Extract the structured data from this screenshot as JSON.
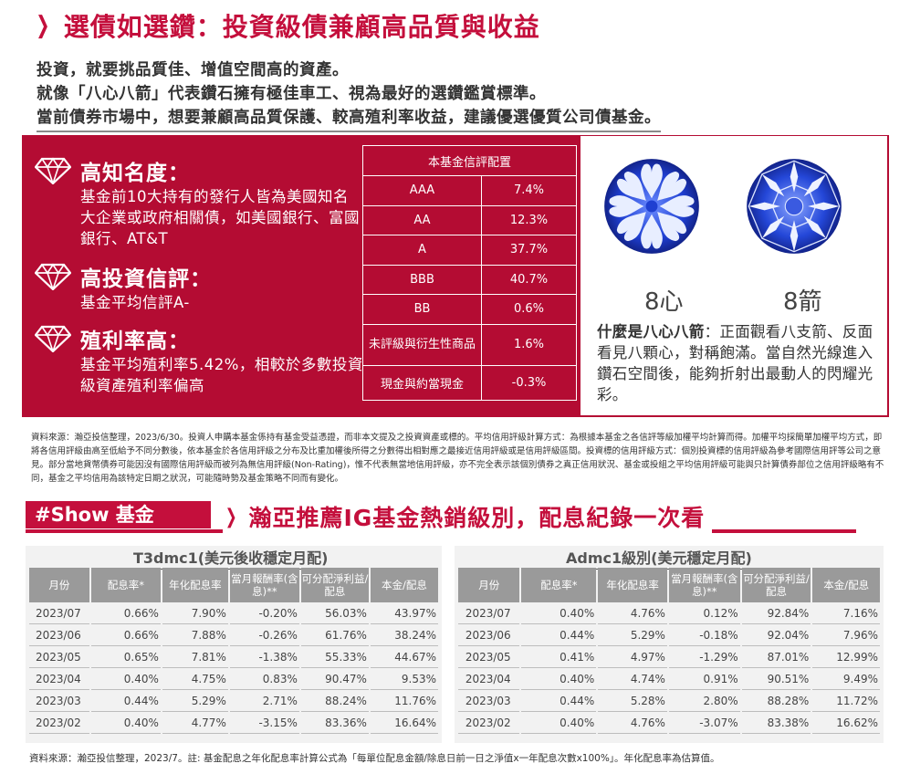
{
  "header": {
    "title": "選債如選鑽：投資級債兼顧高品質與收益"
  },
  "intro": {
    "line1": "投資，就要挑品質佳、增值空間高的資產。",
    "line2": "就像「八心八箭」代表鑽石擁有極佳車工、視為最好的選鑽鑑賞標準。",
    "line3": "當前債券市場中，想要兼顧高品質保護、較高殖利率收益，建議優選優質公司債基金。"
  },
  "features": [
    {
      "title": "高知名度：",
      "body": "基金前10大持有的發行人皆為美國知名大企業或政府相關債，如美國銀行、富國銀行、AT&T"
    },
    {
      "title": "高投資信評：",
      "body": "基金平均信評A-"
    },
    {
      "title": "殖利率高：",
      "body": "基金平均殖利率5.42%，相較於多數投資級資產殖利率偏高"
    }
  ],
  "rating_table": {
    "header": "本基金信評配置",
    "rows": [
      {
        "label": "AAA",
        "value": "7.4%"
      },
      {
        "label": "AA",
        "value": "12.3%"
      },
      {
        "label": "A",
        "value": "37.7%"
      },
      {
        "label": "BBB",
        "value": "40.7%"
      },
      {
        "label": "BB",
        "value": "0.6%"
      },
      {
        "label": "未評級與衍生性商品",
        "value": "1.6%"
      },
      {
        "label": "現金與約當現金",
        "value": "-0.3%"
      }
    ]
  },
  "diamonds": {
    "left_label": "8心",
    "right_label": "8箭",
    "question": "什麼是八心八箭",
    "description": "：正面觀看八支箭、反面看見八顆心，對稱飽滿。當自然光線進入鑽石空間後，能夠折射出最動人的閃耀光彩。"
  },
  "source1": "資料來源：瀚亞投信整理，2023/6/30。投資人申購本基金係持有基金受益憑證，而非本文提及之投資資產或標的。平均信用評級計算方式：為根據本基金之各信評等級加權平均計算而得。加權平均採簡單加權平均方式，即將各信用評級由高至低給予不同分數後，依本基金於各信用評級之分布及比重加權後所得之分數得出相對應之最接近信用評級或是信用評級區間。投資標的信用評級方式：個別投資標的信用評級為參考國際信用評等公司之意見。部分當地貨幣債券可能因沒有國際信用評級而被列為無信用評級(Non-Rating)，惟不代表無當地信用評級，亦不完全表示該個別債券之真正信用狀況、基金或投組之平均信用評級可能與只計算債券部位之信用評級略有不同，基金之平均信用為該特定日期之狀況，可能隨時勢及基金策略不同而有變化。",
  "show": {
    "tag": "#Show 基金",
    "subtitle": "瀚亞推薦IG基金熱銷級別，配息紀錄一次看"
  },
  "fund_headers": [
    "月份",
    "配息率*",
    "年化配息率",
    "當月報酬率(含息)**",
    "可分配淨利益/配息",
    "本金/配息"
  ],
  "funds": [
    {
      "title": "T3dmc1(美元後收穩定月配)",
      "rows": [
        [
          "2023/07",
          "0.66%",
          "7.90%",
          "-0.20%",
          "56.03%",
          "43.97%"
        ],
        [
          "2023/06",
          "0.66%",
          "7.88%",
          "-0.26%",
          "61.76%",
          "38.24%"
        ],
        [
          "2023/05",
          "0.65%",
          "7.81%",
          "-1.38%",
          "55.33%",
          "44.67%"
        ],
        [
          "2023/04",
          "0.40%",
          "4.75%",
          "0.83%",
          "90.47%",
          "9.53%"
        ],
        [
          "2023/03",
          "0.44%",
          "5.29%",
          "2.71%",
          "88.24%",
          "11.76%"
        ],
        [
          "2023/02",
          "0.40%",
          "4.77%",
          "-3.15%",
          "83.36%",
          "16.64%"
        ]
      ]
    },
    {
      "title": "Admc1級別(美元穩定月配)",
      "rows": [
        [
          "2023/07",
          "0.40%",
          "4.76%",
          "0.12%",
          "92.84%",
          "7.16%"
        ],
        [
          "2023/06",
          "0.44%",
          "5.29%",
          "-0.18%",
          "92.04%",
          "7.96%"
        ],
        [
          "2023/05",
          "0.41%",
          "4.97%",
          "-1.29%",
          "87.01%",
          "12.99%"
        ],
        [
          "2023/04",
          "0.40%",
          "4.74%",
          "0.91%",
          "90.51%",
          "9.49%"
        ],
        [
          "2023/03",
          "0.44%",
          "5.28%",
          "2.80%",
          "88.28%",
          "11.72%"
        ],
        [
          "2023/02",
          "0.40%",
          "4.76%",
          "-3.07%",
          "83.38%",
          "16.62%"
        ]
      ]
    }
  ],
  "source2": "資料來源：瀚亞投信整理，2023/7。註: 基金配息之年化配息率計算公式為「每單位配息金額/除息日前一日之淨值x一年配息次數x100%」。年化配息率為估算值。",
  "colors": {
    "brand_red": "#b40c33",
    "title_red": "#c40f3c",
    "diamond_blue": "#1f3fd1"
  },
  "icons": [
    "diamond-icon",
    "chevron-right-icon"
  ]
}
